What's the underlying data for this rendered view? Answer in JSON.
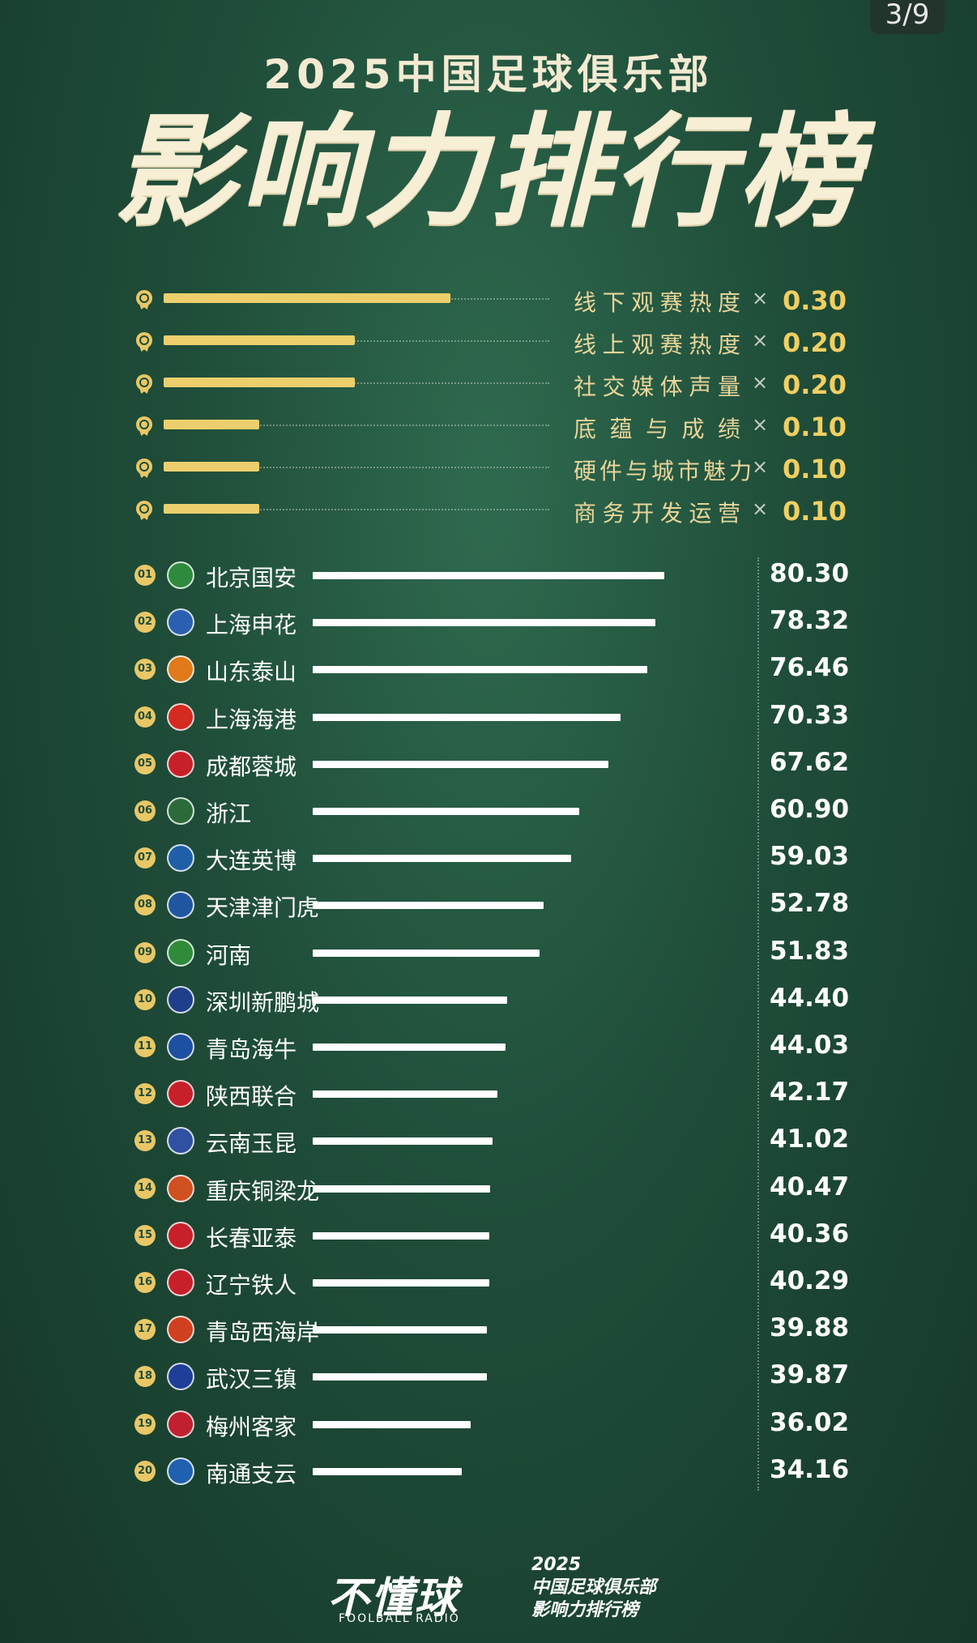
{
  "page_counter": "3/9",
  "header": {
    "subtitle": "2025中国足球俱乐部",
    "title": "影响力排行榜"
  },
  "weights": [
    {
      "label": "线下观赛热度",
      "times": "×",
      "value": "0.30",
      "weight": 0.3
    },
    {
      "label": "线上观赛热度",
      "times": "×",
      "value": "0.20",
      "weight": 0.2
    },
    {
      "label": "社交媒体声量",
      "times": "×",
      "value": "0.20",
      "weight": 0.2
    },
    {
      "label": "底蕴与成绩",
      "times": "×",
      "value": "0.10",
      "weight": 0.1
    },
    {
      "label": "硬件与城市魅力",
      "times": "×",
      "value": "0.10",
      "weight": 0.1
    },
    {
      "label": "商务开发运营",
      "times": "×",
      "value": "0.10",
      "weight": 0.1
    }
  ],
  "chart_data": {
    "type": "bar",
    "orientation": "horizontal",
    "title": "影响力排行榜",
    "ranks": [
      "01",
      "02",
      "03",
      "04",
      "05",
      "06",
      "07",
      "08",
      "09",
      "10",
      "11",
      "12",
      "13",
      "14",
      "15",
      "16",
      "17",
      "18",
      "19",
      "20"
    ],
    "categories": [
      "北京国安",
      "上海申花",
      "山东泰山",
      "上海海港",
      "成都蓉城",
      "浙江",
      "大连英博",
      "天津津门虎",
      "河南",
      "深圳新鹏城",
      "青岛海牛",
      "陕西联合",
      "云南玉昆",
      "重庆铜梁龙",
      "长春亚泰",
      "辽宁铁人",
      "青岛西海岸",
      "武汉三镇",
      "梅州客家",
      "南通支云"
    ],
    "values": [
      80.3,
      78.32,
      76.46,
      70.33,
      67.62,
      60.9,
      59.03,
      52.78,
      51.83,
      44.4,
      44.03,
      42.17,
      41.02,
      40.47,
      40.36,
      40.29,
      39.88,
      39.87,
      36.02,
      34.16
    ],
    "labels": [
      "80.30",
      "78.32",
      "76.46",
      "70.33",
      "67.62",
      "60.90",
      "59.03",
      "52.78",
      "51.83",
      "44.40",
      "44.03",
      "42.17",
      "41.02",
      "40.47",
      "40.36",
      "40.29",
      "39.88",
      "39.87",
      "36.02",
      "34.16"
    ],
    "xlim": [
      0,
      100
    ],
    "grid": false,
    "badge_colors": [
      "#2e8b3e",
      "#2b5fb0",
      "#e07a1a",
      "#d42a20",
      "#c8202a",
      "#2c6a3a",
      "#1f5fa8",
      "#2056a0",
      "#2f8a3a",
      "#1f3f8a",
      "#1e4fa0",
      "#c8202a",
      "#3050a0",
      "#d05020",
      "#c8202a",
      "#c8202a",
      "#d04020",
      "#1e3f98",
      "#c02030",
      "#2060b0"
    ]
  },
  "footer": {
    "brand": "不懂球",
    "brand_sub": "FOOLBALL RADIO",
    "line1": "2025",
    "line2": "中国足球俱乐部",
    "line3": "影响力排行榜"
  }
}
